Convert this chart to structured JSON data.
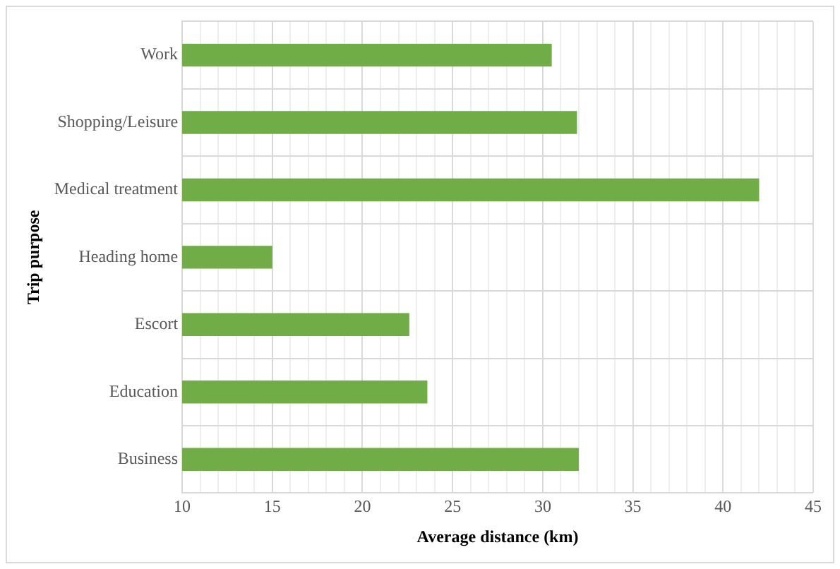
{
  "chart_data": {
    "type": "bar",
    "orientation": "horizontal",
    "xlabel": "Average distance (km)",
    "ylabel": "Trip purpose",
    "categories": [
      "Work",
      "Shopping/Leisure",
      "Medical treatment",
      "Heading home",
      "Escort",
      "Education",
      "Business"
    ],
    "values": [
      30.5,
      31.9,
      42.0,
      15.0,
      22.6,
      23.6,
      32.0
    ],
    "color": "#70ad47",
    "xlim": [
      10,
      45
    ],
    "xticks": [
      10,
      {
        "value": 11,
        "label": null
      },
      {
        "value": 12,
        "label": null
      },
      {
        "value": 13,
        "label": null
      },
      {
        "value": 14,
        "label": null
      },
      15,
      {
        "value": 16,
        "label": null
      },
      {
        "value": 17,
        "label": null
      },
      {
        "value": 18,
        "label": null
      },
      {
        "value": 19,
        "label": null
      },
      20,
      {
        "value": 21,
        "label": null
      },
      {
        "value": 22,
        "label": null
      },
      {
        "value": 23,
        "label": null
      },
      {
        "value": 24,
        "label": null
      },
      25,
      {
        "value": 26,
        "label": null
      },
      {
        "value": 27,
        "label": null
      },
      {
        "value": 28,
        "label": null
      },
      {
        "value": 29,
        "label": null
      },
      30,
      {
        "value": 31,
        "label": null
      },
      {
        "value": 32,
        "label": null
      },
      {
        "value": 33,
        "label": null
      },
      {
        "value": 34,
        "label": null
      },
      35,
      {
        "value": 36,
        "label": null
      },
      {
        "value": 37,
        "label": null
      },
      {
        "value": 38,
        "label": null
      },
      {
        "value": 39,
        "label": null
      },
      40,
      {
        "value": 41,
        "label": null
      },
      {
        "value": 42,
        "label": null
      },
      {
        "value": 43,
        "label": null
      },
      {
        "value": 44,
        "label": null
      },
      45
    ],
    "grid": true,
    "legend": false
  }
}
